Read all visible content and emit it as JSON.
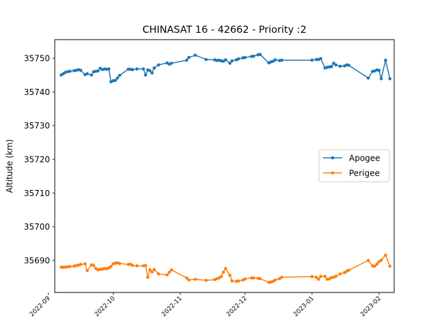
{
  "chart_data": {
    "type": "line",
    "title": "CHINASAT 16 - 42662 - Priority :2",
    "xlabel": "",
    "ylabel": "Altitude (km)",
    "ylim": [
      35680.5,
      35755.5
    ],
    "xlim": [
      "2022-09-04",
      "2023-02-08"
    ],
    "yticks": [
      35690,
      35700,
      35710,
      35720,
      35730,
      35740,
      35750
    ],
    "xticks": [
      "2022-09",
      "2022-10",
      "2022-11",
      "2022-12",
      "2023-01",
      "2023-02"
    ],
    "grid": false,
    "legend_position": "center-right",
    "series": [
      {
        "name": "Apogee",
        "color": "#1f77b4",
        "x": [
          "2022-09-07",
          "2022-09-08",
          "2022-09-09",
          "2022-09-10",
          "2022-09-11",
          "2022-09-13",
          "2022-09-14",
          "2022-09-15",
          "2022-09-16",
          "2022-09-18",
          "2022-09-19",
          "2022-09-21",
          "2022-09-22",
          "2022-09-23",
          "2022-09-24",
          "2022-09-25",
          "2022-09-26",
          "2022-09-27",
          "2022-09-28",
          "2022-09-29",
          "2022-09-30",
          "2022-10-01",
          "2022-10-02",
          "2022-10-03",
          "2022-10-04",
          "2022-10-08",
          "2022-10-09",
          "2022-10-10",
          "2022-10-12",
          "2022-10-15",
          "2022-10-16",
          "2022-10-17",
          "2022-10-18",
          "2022-10-19",
          "2022-10-20",
          "2022-10-22",
          "2022-10-26",
          "2022-10-27",
          "2022-10-28",
          "2022-11-04",
          "2022-11-05",
          "2022-11-08",
          "2022-11-13",
          "2022-11-17",
          "2022-11-18",
          "2022-11-19",
          "2022-11-20",
          "2022-11-21",
          "2022-11-22",
          "2022-11-24",
          "2022-11-25",
          "2022-11-27",
          "2022-11-28",
          "2022-11-30",
          "2022-12-01",
          "2022-12-04",
          "2022-12-05",
          "2022-12-07",
          "2022-12-08",
          "2022-12-12",
          "2022-12-13",
          "2022-12-14",
          "2022-12-15",
          "2022-12-17",
          "2022-12-18",
          "2023-01-01",
          "2023-01-03",
          "2023-01-04",
          "2023-01-05",
          "2023-01-07",
          "2023-01-08",
          "2023-01-09",
          "2023-01-10",
          "2023-01-11",
          "2023-01-12",
          "2023-01-14",
          "2023-01-16",
          "2023-01-17",
          "2023-01-18",
          "2023-01-27",
          "2023-01-29",
          "2023-01-30",
          "2023-01-31",
          "2023-02-01",
          "2023-02-02",
          "2023-02-04",
          "2023-02-06"
        ],
        "y": [
          35745.0,
          35745.4,
          35745.8,
          35746.0,
          35746.1,
          35746.3,
          35746.4,
          35746.6,
          35746.4,
          35745.1,
          35745.4,
          35745.0,
          35746.0,
          35746.1,
          35746.2,
          35747.0,
          35746.6,
          35746.8,
          35746.7,
          35746.8,
          35743.0,
          35743.3,
          35743.4,
          35744.1,
          35744.9,
          35746.7,
          35746.7,
          35746.6,
          35746.8,
          35746.8,
          35745.0,
          35746.5,
          35746.3,
          35745.6,
          35747.1,
          35748.0,
          35748.6,
          35748.2,
          35748.5,
          35749.4,
          35750.2,
          35750.9,
          35749.6,
          35749.5,
          35749.3,
          35749.4,
          35749.2,
          35749.1,
          35749.5,
          35748.5,
          35749.2,
          35749.5,
          35749.8,
          35750.1,
          35750.2,
          35750.5,
          35750.6,
          35751.0,
          35751.1,
          35748.6,
          35748.9,
          35749.1,
          35749.5,
          35749.3,
          35749.4,
          35749.4,
          35749.6,
          35749.6,
          35749.9,
          35747.1,
          35747.3,
          35747.4,
          35747.5,
          35748.5,
          35748.0,
          35747.6,
          35747.7,
          35748.0,
          35747.9,
          35744.1,
          35746.1,
          35746.2,
          35746.5,
          35746.4,
          35743.9,
          35749.4,
          35743.9
        ]
      },
      {
        "name": "Perigee",
        "color": "#ff7f0e",
        "x": [
          "2022-09-07",
          "2022-09-08",
          "2022-09-09",
          "2022-09-10",
          "2022-09-11",
          "2022-09-13",
          "2022-09-14",
          "2022-09-15",
          "2022-09-16",
          "2022-09-18",
          "2022-09-19",
          "2022-09-21",
          "2022-09-22",
          "2022-09-23",
          "2022-09-24",
          "2022-09-25",
          "2022-09-26",
          "2022-09-27",
          "2022-09-28",
          "2022-09-29",
          "2022-09-30",
          "2022-10-01",
          "2022-10-02",
          "2022-10-03",
          "2022-10-04",
          "2022-10-08",
          "2022-10-09",
          "2022-10-10",
          "2022-10-12",
          "2022-10-15",
          "2022-10-16",
          "2022-10-17",
          "2022-10-18",
          "2022-10-19",
          "2022-10-20",
          "2022-10-22",
          "2022-10-26",
          "2022-10-27",
          "2022-10-28",
          "2022-11-04",
          "2022-11-05",
          "2022-11-08",
          "2022-11-13",
          "2022-11-17",
          "2022-11-18",
          "2022-11-19",
          "2022-11-20",
          "2022-11-21",
          "2022-11-22",
          "2022-11-24",
          "2022-11-25",
          "2022-11-27",
          "2022-11-28",
          "2022-11-30",
          "2022-12-01",
          "2022-12-04",
          "2022-12-05",
          "2022-12-07",
          "2022-12-08",
          "2022-12-12",
          "2022-12-13",
          "2022-12-14",
          "2022-12-15",
          "2022-12-17",
          "2022-12-18",
          "2023-01-01",
          "2023-01-03",
          "2023-01-04",
          "2023-01-05",
          "2023-01-07",
          "2023-01-08",
          "2023-01-09",
          "2023-01-10",
          "2023-01-11",
          "2023-01-12",
          "2023-01-14",
          "2023-01-16",
          "2023-01-17",
          "2023-01-18",
          "2023-01-27",
          "2023-01-29",
          "2023-01-30",
          "2023-01-31",
          "2023-02-01",
          "2023-02-02",
          "2023-02-04",
          "2023-02-06"
        ],
        "y": [
          35688.0,
          35688.0,
          35688.0,
          35688.1,
          35688.2,
          35688.3,
          35688.5,
          35688.6,
          35688.8,
          35689.0,
          35687.0,
          35688.7,
          35688.5,
          35687.6,
          35687.2,
          35687.4,
          35687.4,
          35687.6,
          35687.5,
          35687.8,
          35688.2,
          35689.0,
          35689.2,
          35689.3,
          35689.1,
          35688.8,
          35688.9,
          35688.5,
          35688.4,
          35688.4,
          35688.5,
          35685.0,
          35687.2,
          35686.6,
          35687.3,
          35686.0,
          35685.7,
          35686.5,
          35687.2,
          35684.8,
          35684.2,
          35684.4,
          35684.1,
          35684.3,
          35684.6,
          35684.8,
          35685.2,
          35686.5,
          35687.6,
          35685.6,
          35683.9,
          35683.8,
          35683.9,
          35684.2,
          35684.5,
          35684.8,
          35684.8,
          35684.7,
          35684.6,
          35683.5,
          35683.6,
          35683.8,
          35684.2,
          35684.6,
          35685.0,
          35685.2,
          35685.0,
          35684.4,
          35685.3,
          35685.3,
          35684.4,
          35684.5,
          35684.9,
          35685.0,
          35685.3,
          35686.0,
          35686.4,
          35686.8,
          35687.1,
          35690.0,
          35688.4,
          35688.3,
          35688.9,
          35689.6,
          35690.1,
          35691.6,
          35688.3
        ]
      }
    ]
  }
}
